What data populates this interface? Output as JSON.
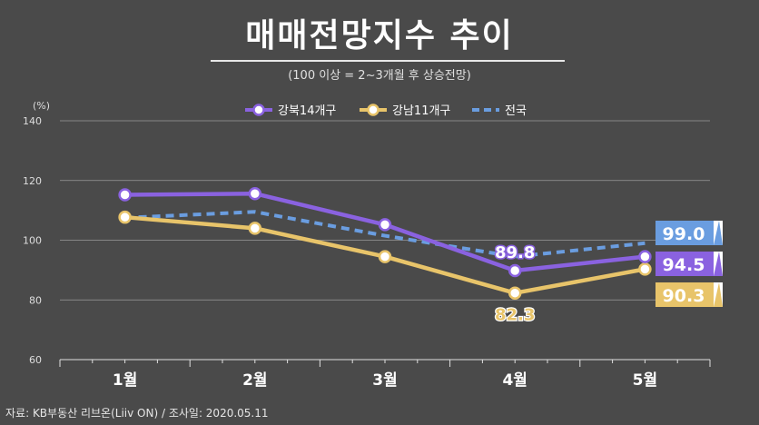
{
  "title": "매매전망지수 추이",
  "subtitle": "(100 이상 = 2~3개월 후 상승전망)",
  "unit": "(%)",
  "source": "자료: KB부동산 리브온(Liiv ON)  / 조사일: 2020.05.11",
  "colors": {
    "background": "#4a4a4a",
    "gangbuk": "#8a62e0",
    "gangnam": "#e8c46a",
    "national": "#6a9de0",
    "grid": "#9a9a9a"
  },
  "chart_data": {
    "type": "line",
    "categories": [
      "1월",
      "2월",
      "3월",
      "4월",
      "5월"
    ],
    "ylim": [
      60,
      140
    ],
    "yticks": [
      60,
      80,
      100,
      120,
      140
    ],
    "grid": true,
    "legend_position": "top-center",
    "series": [
      {
        "name": "강북14개구",
        "color": "#8a62e0",
        "style": "solid-marker",
        "values": [
          115.2,
          115.6,
          105.2,
          89.8,
          94.5
        ]
      },
      {
        "name": "강남11개구",
        "color": "#e8c46a",
        "style": "solid-marker",
        "values": [
          107.7,
          104.0,
          94.5,
          82.3,
          90.3
        ]
      },
      {
        "name": "전국",
        "color": "#6a9de0",
        "style": "dashed",
        "values": [
          107.5,
          109.5,
          101.5,
          94.5,
          99.0
        ]
      }
    ],
    "annotations": [
      {
        "series": "강북14개구",
        "index": 3,
        "text": "89.8"
      },
      {
        "series": "강남11개구",
        "index": 3,
        "text": "82.3"
      }
    ],
    "end_labels": [
      {
        "series": "전국",
        "text": "99.0"
      },
      {
        "series": "강북14개구",
        "text": "94.5"
      },
      {
        "series": "강남11개구",
        "text": "90.3"
      }
    ]
  }
}
